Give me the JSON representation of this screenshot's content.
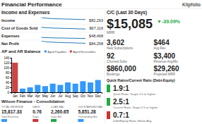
{
  "title": "Financial Performance",
  "subtitle": "Klipfolio",
  "chart_data": [
    {
      "type": "line",
      "title": "Income and Expenses",
      "categories": [
        null,
        null,
        null,
        null,
        null,
        null,
        null,
        null,
        null,
        null,
        null,
        null
      ],
      "series": [
        {
          "name": "Income",
          "values": [
            82,
            78,
            75,
            73,
            72,
            71,
            70,
            69,
            68,
            67,
            66,
            65
          ]
        },
        {
          "name": "Cost of Goods Sold",
          "values": [
            67,
            64,
            62,
            60,
            59,
            58,
            57,
            56,
            55,
            54,
            53,
            52
          ]
        },
        {
          "name": "Expenses",
          "values": [
            48,
            46,
            45,
            44,
            43,
            43,
            42,
            41,
            41,
            40,
            40,
            39
          ]
        },
        {
          "name": "Net Profit",
          "values": [
            84,
            80,
            77,
            75,
            73,
            72,
            71,
            70,
            69,
            68,
            67,
            66
          ]
        }
      ],
      "annotations": [
        "$82,293",
        "$67,116",
        "$48,468",
        "$84,258"
      ],
      "ylim": [
        35,
        85
      ],
      "tick_labels": false
    },
    {
      "type": "bar",
      "title": "AP and AR Balance",
      "categories": [
        "Jan",
        "Feb",
        "Mar",
        "Apr",
        "May",
        "Jun",
        "Jul",
        "Aug",
        "Sep",
        "Oct",
        "Nov",
        "Dec"
      ],
      "series": [
        {
          "name": "Aged Payables",
          "color": "#3399ff",
          "values": [
            null,
            15,
            20,
            30,
            25,
            35,
            30,
            40,
            35,
            45,
            40,
            50
          ]
        },
        {
          "name": "Aged Receivables",
          "color": "#cc4444",
          "values": [
            120,
            null,
            null,
            null,
            null,
            null,
            null,
            null,
            null,
            null,
            null,
            null
          ]
        }
      ],
      "stacked": true,
      "legend": "top",
      "ylim": [
        0,
        140
      ],
      "yticks": [
        0,
        20,
        40,
        60,
        80,
        100,
        120,
        140
      ]
    },
    {
      "type": "table",
      "title": "Wilson Finance - Consolidation",
      "columns": [
        "TOTAL REVENUE",
        "DAYS",
        "LOAN BAL",
        "OUTSTANDING BAL"
      ],
      "categories": [
        "Total Revenue",
        "Days",
        "Loan Bal",
        "Outstanding Bal"
      ],
      "values": [
        15817.33,
        0.76,
        2260.65,
        5851.28
      ],
      "value_labels": [
        "15,817.33",
        "0.76",
        "2,260.65",
        "5,851.28"
      ],
      "colors": [
        "#3399ff",
        "#cc3333",
        "#22aa44",
        "#3399ff"
      ]
    },
    {
      "type": "kpi",
      "title": "C/C (Last 30 Days)",
      "categories": [
        "MRR"
      ],
      "values": [
        15085
      ],
      "value_labels": [
        "$15,085"
      ],
      "annotations": [
        "▼-39.09%"
      ],
      "color": "#22aa44"
    },
    {
      "type": "stats",
      "categories": [
        "New Subscriptions",
        "Avg Rev",
        "Churned Subs",
        "Revenue Avg/Mo",
        "Bookings",
        "Projected MRR"
      ],
      "values": [
        3602,
        464,
        92,
        3400,
        860000,
        29260
      ],
      "value_labels": [
        "3,602",
        "$464",
        "92",
        "$3,400",
        "$860,000",
        "$29,260"
      ]
    },
    {
      "type": "scorecard",
      "title": "Quick Ratios/Current Ratio (Debt-Equity)",
      "categories": [
        "Quick Ratio: Target 2.0 or higher",
        "Current Ratio: Target 2.0 or higher",
        "Debt/Equity Ratio: Below Avg"
      ],
      "values": [
        1.9,
        2.5,
        0.7
      ],
      "value_labels": [
        "1.9:1",
        "2.5:1",
        "0.7:1"
      ],
      "colors": [
        "#22aa44",
        "#22aa44",
        "#cc3333"
      ]
    }
  ]
}
